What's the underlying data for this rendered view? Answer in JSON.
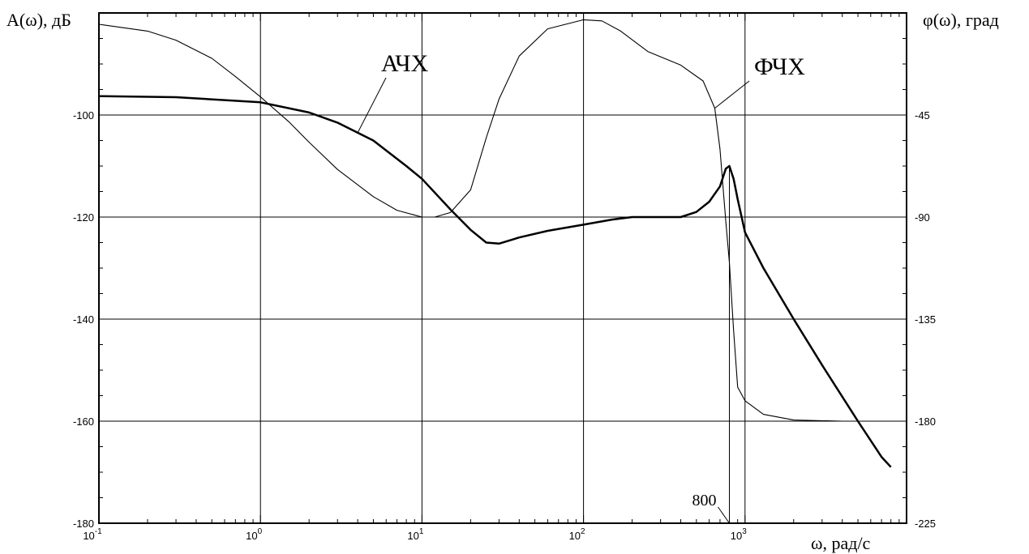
{
  "chart_data": {
    "type": "line",
    "x_scale": "log",
    "xlim": [
      0.1,
      5000
    ],
    "ylim_left": [
      -180,
      -80
    ],
    "ylim_right": [
      -225,
      0
    ],
    "grid": true,
    "xlabel": "ω, рад/с",
    "ylabel_left": "A(ω), дБ",
    "ylabel_right": "φ(ω), град",
    "x_ticks": [
      {
        "value": 0.1,
        "base": "10",
        "exp": "-1"
      },
      {
        "value": 1,
        "base": "10",
        "exp": "0"
      },
      {
        "value": 10,
        "base": "10",
        "exp": "1"
      },
      {
        "value": 100,
        "base": "10",
        "exp": "2"
      },
      {
        "value": 1000,
        "base": "10",
        "exp": "3"
      }
    ],
    "y_ticks_left": [
      {
        "value": -100,
        "label": "-100"
      },
      {
        "value": -120,
        "label": "-120"
      },
      {
        "value": -140,
        "label": "-140"
      },
      {
        "value": -160,
        "label": "-160"
      },
      {
        "value": -180,
        "label": "-180"
      }
    ],
    "y_ticks_right": [
      {
        "value": -45,
        "label": "-45"
      },
      {
        "value": -90,
        "label": "-90"
      },
      {
        "value": -135,
        "label": "-135"
      },
      {
        "value": -180,
        "label": "-180"
      },
      {
        "value": -225,
        "label": "-225"
      }
    ],
    "series": [
      {
        "name": "АЧХ",
        "axis": "left",
        "points": [
          [
            0.1,
            -96.3
          ],
          [
            0.3,
            -96.5
          ],
          [
            1,
            -97.5
          ],
          [
            2,
            -99.5
          ],
          [
            3,
            -101.5
          ],
          [
            5,
            -105
          ],
          [
            8,
            -110
          ],
          [
            10,
            -112.5
          ],
          [
            15,
            -118.5
          ],
          [
            20,
            -122.5
          ],
          [
            25,
            -125
          ],
          [
            30,
            -125.2
          ],
          [
            40,
            -124
          ],
          [
            60,
            -122.7
          ],
          [
            100,
            -121.5
          ],
          [
            150,
            -120.5
          ],
          [
            200,
            -120
          ],
          [
            300,
            -120
          ],
          [
            400,
            -120
          ],
          [
            500,
            -119
          ],
          [
            600,
            -117
          ],
          [
            700,
            -114
          ],
          [
            760,
            -110.5
          ],
          [
            800,
            -110
          ],
          [
            850,
            -112.5
          ],
          [
            900,
            -116.5
          ],
          [
            1000,
            -123
          ],
          [
            1300,
            -130
          ],
          [
            2000,
            -140
          ],
          [
            3000,
            -149
          ],
          [
            5000,
            -160
          ],
          [
            7000,
            -167
          ],
          [
            8000,
            -169
          ]
        ]
      },
      {
        "name": "ФЧХ",
        "axis": "right",
        "points": [
          [
            0.1,
            -5
          ],
          [
            0.2,
            -8
          ],
          [
            0.3,
            -12
          ],
          [
            0.5,
            -20
          ],
          [
            0.7,
            -28
          ],
          [
            1,
            -37
          ],
          [
            1.5,
            -48
          ],
          [
            2,
            -57
          ],
          [
            3,
            -69
          ],
          [
            5,
            -81
          ],
          [
            7,
            -87
          ],
          [
            10,
            -90
          ],
          [
            12,
            -90
          ],
          [
            15,
            -88
          ],
          [
            20,
            -78
          ],
          [
            25,
            -55
          ],
          [
            30,
            -38
          ],
          [
            40,
            -19
          ],
          [
            60,
            -7
          ],
          [
            100,
            -3
          ],
          [
            130,
            -3.5
          ],
          [
            170,
            -8
          ],
          [
            250,
            -17
          ],
          [
            400,
            -23
          ],
          [
            550,
            -30
          ],
          [
            650,
            -42
          ],
          [
            700,
            -60
          ],
          [
            760,
            -92
          ],
          [
            800,
            -110
          ],
          [
            850,
            -140
          ],
          [
            900,
            -165
          ],
          [
            1000,
            -171
          ],
          [
            1300,
            -177
          ],
          [
            2000,
            -179.5
          ],
          [
            4000,
            -180
          ],
          [
            8000,
            -180
          ]
        ]
      }
    ],
    "annotations": [
      {
        "text": "АЧХ",
        "anchor_x": 4,
        "anchor_series": "АЧХ"
      },
      {
        "text": "ФЧХ",
        "anchor_x": 650,
        "anchor_series": "ФЧХ"
      },
      {
        "text": "800",
        "x": 800
      }
    ]
  }
}
